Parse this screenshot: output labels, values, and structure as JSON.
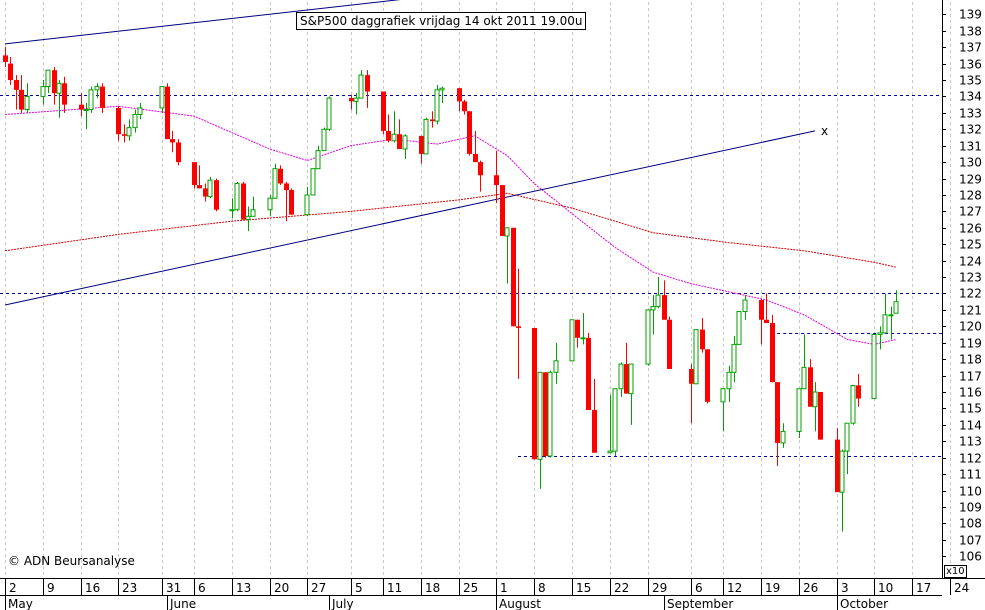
{
  "chart_data": {
    "type": "candlestick",
    "title": "S&P500 daggrafiek vrijdag 14 okt 2011 19.00u",
    "copyright": "© ADN Beursanalyse",
    "y_scale_note": "x10",
    "ylim": [
      105.5,
      139.5
    ],
    "y_ticks": [
      106,
      107,
      108,
      109,
      110,
      111,
      112,
      113,
      114,
      115,
      116,
      117,
      118,
      119,
      120,
      121,
      122,
      123,
      124,
      125,
      126,
      127,
      128,
      129,
      130,
      131,
      132,
      133,
      134,
      135,
      136,
      137,
      138,
      139
    ],
    "x_day_labels": [
      "2",
      "9",
      "16",
      "23",
      "31",
      "6",
      "13",
      "20",
      "27",
      "5",
      "11",
      "18",
      "25",
      "1",
      "8",
      "15",
      "22",
      "29",
      "6",
      "12",
      "19",
      "26",
      "3",
      "10",
      "17",
      "24"
    ],
    "x_month_labels": [
      "May",
      "June",
      "July",
      "August",
      "September",
      "October"
    ],
    "horizontal_levels": [
      134.1,
      122.0,
      119.6,
      112.1
    ],
    "trendline_markers": [
      "x"
    ],
    "candles": [
      {
        "date": "2011-05-02",
        "o": 136.5,
        "h": 137.0,
        "l": 135.8,
        "c": 136.1
      },
      {
        "date": "2011-05-03",
        "o": 136.0,
        "h": 136.4,
        "l": 134.7,
        "c": 135.0
      },
      {
        "date": "2011-05-04",
        "o": 135.0,
        "h": 135.3,
        "l": 133.2,
        "c": 134.4
      },
      {
        "date": "2011-05-05",
        "o": 134.4,
        "h": 135.3,
        "l": 133.0,
        "c": 133.2
      },
      {
        "date": "2011-05-06",
        "o": 133.2,
        "h": 134.8,
        "l": 133.0,
        "c": 134.0
      },
      {
        "date": "2011-05-09",
        "o": 134.0,
        "h": 135.0,
        "l": 133.5,
        "c": 134.6
      },
      {
        "date": "2011-05-10",
        "o": 134.6,
        "h": 135.6,
        "l": 134.2,
        "c": 135.6
      },
      {
        "date": "2011-05-11",
        "o": 135.6,
        "h": 135.8,
        "l": 133.5,
        "c": 134.2
      },
      {
        "date": "2011-05-12",
        "o": 134.2,
        "h": 135.0,
        "l": 132.7,
        "c": 134.8
      },
      {
        "date": "2011-05-13",
        "o": 134.8,
        "h": 135.2,
        "l": 133.0,
        "c": 133.5
      },
      {
        "date": "2011-05-16",
        "o": 133.5,
        "h": 134.2,
        "l": 132.8,
        "c": 133.2
      },
      {
        "date": "2011-05-17",
        "o": 133.2,
        "h": 133.6,
        "l": 132.0,
        "c": 133.2
      },
      {
        "date": "2011-05-18",
        "o": 133.2,
        "h": 134.6,
        "l": 133.0,
        "c": 134.4
      },
      {
        "date": "2011-05-19",
        "o": 134.4,
        "h": 134.8,
        "l": 133.9,
        "c": 134.6
      },
      {
        "date": "2011-05-20",
        "o": 134.6,
        "h": 134.8,
        "l": 133.0,
        "c": 133.3
      },
      {
        "date": "2011-05-23",
        "o": 133.3,
        "h": 133.4,
        "l": 131.3,
        "c": 131.7
      },
      {
        "date": "2011-05-24",
        "o": 131.7,
        "h": 132.3,
        "l": 131.2,
        "c": 131.6
      },
      {
        "date": "2011-05-25",
        "o": 131.6,
        "h": 132.6,
        "l": 131.3,
        "c": 132.1
      },
      {
        "date": "2011-05-26",
        "o": 132.1,
        "h": 133.2,
        "l": 131.8,
        "c": 132.9
      },
      {
        "date": "2011-05-27",
        "o": 132.9,
        "h": 133.6,
        "l": 132.6,
        "c": 133.3
      },
      {
        "date": "2011-05-31",
        "o": 133.3,
        "h": 134.6,
        "l": 133.0,
        "c": 134.6
      },
      {
        "date": "2011-06-01",
        "o": 134.6,
        "h": 134.8,
        "l": 131.4,
        "c": 131.4
      },
      {
        "date": "2011-06-02",
        "o": 131.4,
        "h": 131.9,
        "l": 130.6,
        "c": 131.2
      },
      {
        "date": "2011-06-03",
        "o": 131.2,
        "h": 131.4,
        "l": 129.8,
        "c": 130.0
      },
      {
        "date": "2011-06-06",
        "o": 130.0,
        "h": 130.0,
        "l": 128.4,
        "c": 128.6
      },
      {
        "date": "2011-06-07",
        "o": 128.6,
        "h": 129.8,
        "l": 128.4,
        "c": 128.4
      },
      {
        "date": "2011-06-08",
        "o": 128.4,
        "h": 128.7,
        "l": 127.6,
        "c": 127.9
      },
      {
        "date": "2011-06-09",
        "o": 127.9,
        "h": 129.1,
        "l": 127.8,
        "c": 128.9
      },
      {
        "date": "2011-06-10",
        "o": 128.9,
        "h": 129.0,
        "l": 127.0,
        "c": 127.1
      },
      {
        "date": "2011-06-13",
        "o": 127.1,
        "h": 127.8,
        "l": 126.6,
        "c": 127.1
      },
      {
        "date": "2011-06-14",
        "o": 127.1,
        "h": 128.8,
        "l": 127.0,
        "c": 128.7
      },
      {
        "date": "2011-06-15",
        "o": 128.7,
        "h": 128.8,
        "l": 126.5,
        "c": 126.5
      },
      {
        "date": "2011-06-16",
        "o": 126.5,
        "h": 127.3,
        "l": 125.8,
        "c": 126.7
      },
      {
        "date": "2011-06-17",
        "o": 126.7,
        "h": 127.9,
        "l": 126.7,
        "c": 127.1
      },
      {
        "date": "2011-06-20",
        "o": 127.1,
        "h": 128.0,
        "l": 126.7,
        "c": 127.8
      },
      {
        "date": "2011-06-21",
        "o": 127.8,
        "h": 129.9,
        "l": 127.8,
        "c": 129.6
      },
      {
        "date": "2011-06-22",
        "o": 129.6,
        "h": 129.8,
        "l": 128.6,
        "c": 128.7
      },
      {
        "date": "2011-06-23",
        "o": 128.7,
        "h": 128.8,
        "l": 126.4,
        "c": 128.3
      },
      {
        "date": "2011-06-24",
        "o": 128.3,
        "h": 128.4,
        "l": 126.8,
        "c": 126.8
      },
      {
        "date": "2011-06-27",
        "o": 126.8,
        "h": 128.5,
        "l": 126.7,
        "c": 128.0
      },
      {
        "date": "2011-06-28",
        "o": 128.0,
        "h": 129.6,
        "l": 128.0,
        "c": 129.6
      },
      {
        "date": "2011-06-29",
        "o": 129.6,
        "h": 131.0,
        "l": 129.6,
        "c": 130.7
      },
      {
        "date": "2011-06-30",
        "o": 130.7,
        "h": 132.1,
        "l": 130.7,
        "c": 132.0
      },
      {
        "date": "2011-07-01",
        "o": 132.0,
        "h": 134.0,
        "l": 131.9,
        "c": 133.9
      },
      {
        "date": "2011-07-05",
        "o": 133.9,
        "h": 134.1,
        "l": 133.2,
        "c": 133.7
      },
      {
        "date": "2011-07-06",
        "o": 133.7,
        "h": 134.2,
        "l": 132.9,
        "c": 133.9
      },
      {
        "date": "2011-07-07",
        "o": 133.9,
        "h": 135.6,
        "l": 133.9,
        "c": 135.3
      },
      {
        "date": "2011-07-08",
        "o": 135.3,
        "h": 135.6,
        "l": 133.3,
        "c": 134.3
      },
      {
        "date": "2011-07-11",
        "o": 134.3,
        "h": 134.3,
        "l": 131.7,
        "c": 131.9
      },
      {
        "date": "2011-07-12",
        "o": 131.9,
        "h": 132.9,
        "l": 131.2,
        "c": 131.3
      },
      {
        "date": "2011-07-13",
        "o": 131.3,
        "h": 133.1,
        "l": 131.2,
        "c": 131.7
      },
      {
        "date": "2011-07-14",
        "o": 131.7,
        "h": 132.6,
        "l": 130.8,
        "c": 130.8
      },
      {
        "date": "2011-07-15",
        "o": 130.8,
        "h": 131.7,
        "l": 130.2,
        "c": 131.6
      },
      {
        "date": "2011-07-18",
        "o": 131.6,
        "h": 131.6,
        "l": 129.9,
        "c": 130.5
      },
      {
        "date": "2011-07-19",
        "o": 130.5,
        "h": 132.7,
        "l": 130.5,
        "c": 132.6
      },
      {
        "date": "2011-07-20",
        "o": 132.6,
        "h": 133.1,
        "l": 132.1,
        "c": 132.5
      },
      {
        "date": "2011-07-21",
        "o": 132.5,
        "h": 134.7,
        "l": 132.3,
        "c": 134.4
      },
      {
        "date": "2011-07-22",
        "o": 134.4,
        "h": 134.6,
        "l": 133.6,
        "c": 134.5
      },
      {
        "date": "2011-07-25",
        "o": 134.5,
        "h": 134.5,
        "l": 133.1,
        "c": 133.7
      },
      {
        "date": "2011-07-26",
        "o": 133.7,
        "h": 133.8,
        "l": 132.9,
        "c": 133.1
      },
      {
        "date": "2011-07-27",
        "o": 133.1,
        "h": 133.1,
        "l": 130.4,
        "c": 130.5
      },
      {
        "date": "2011-07-28",
        "o": 130.5,
        "h": 131.9,
        "l": 130.0,
        "c": 130.0
      },
      {
        "date": "2011-07-29",
        "o": 130.0,
        "h": 130.1,
        "l": 128.2,
        "c": 129.2
      },
      {
        "date": "2011-08-01",
        "o": 129.2,
        "h": 130.7,
        "l": 127.5,
        "c": 128.6
      },
      {
        "date": "2011-08-02",
        "o": 128.6,
        "h": 128.6,
        "l": 125.5,
        "c": 125.5
      },
      {
        "date": "2011-08-03",
        "o": 125.5,
        "h": 126.0,
        "l": 122.6,
        "c": 126.0
      },
      {
        "date": "2011-08-04",
        "o": 126.0,
        "h": 126.0,
        "l": 120.0,
        "c": 120.0
      },
      {
        "date": "2011-08-05",
        "o": 120.0,
        "h": 123.5,
        "l": 116.8,
        "c": 119.9
      },
      {
        "date": "2011-08-08",
        "o": 119.9,
        "h": 119.9,
        "l": 111.9,
        "c": 111.9
      },
      {
        "date": "2011-08-09",
        "o": 111.9,
        "h": 117.2,
        "l": 110.1,
        "c": 117.2
      },
      {
        "date": "2011-08-10",
        "o": 117.2,
        "h": 117.2,
        "l": 112.0,
        "c": 112.1
      },
      {
        "date": "2011-08-11",
        "o": 112.1,
        "h": 117.3,
        "l": 112.0,
        "c": 117.2
      },
      {
        "date": "2011-08-12",
        "o": 117.2,
        "h": 119.0,
        "l": 116.5,
        "c": 117.9
      },
      {
        "date": "2011-08-15",
        "o": 117.9,
        "h": 120.4,
        "l": 117.9,
        "c": 120.4
      },
      {
        "date": "2011-08-16",
        "o": 120.4,
        "h": 120.4,
        "l": 118.7,
        "c": 119.3
      },
      {
        "date": "2011-08-17",
        "o": 119.3,
        "h": 120.8,
        "l": 118.9,
        "c": 119.3
      },
      {
        "date": "2011-08-18",
        "o": 119.3,
        "h": 119.6,
        "l": 114.9,
        "c": 114.9
      },
      {
        "date": "2011-08-19",
        "o": 114.9,
        "h": 116.8,
        "l": 112.3,
        "c": 112.3
      },
      {
        "date": "2011-08-22",
        "o": 112.3,
        "h": 115.8,
        "l": 112.3,
        "c": 112.4
      },
      {
        "date": "2011-08-23",
        "o": 112.4,
        "h": 116.2,
        "l": 112.1,
        "c": 116.2
      },
      {
        "date": "2011-08-24",
        "o": 116.2,
        "h": 117.8,
        "l": 115.7,
        "c": 117.7
      },
      {
        "date": "2011-08-25",
        "o": 117.7,
        "h": 119.0,
        "l": 115.9,
        "c": 115.9
      },
      {
        "date": "2011-08-26",
        "o": 115.9,
        "h": 117.7,
        "l": 114.0,
        "c": 117.7
      },
      {
        "date": "2011-08-29",
        "o": 117.7,
        "h": 121.0,
        "l": 117.6,
        "c": 121.0
      },
      {
        "date": "2011-08-30",
        "o": 121.0,
        "h": 121.9,
        "l": 119.5,
        "c": 121.2
      },
      {
        "date": "2011-08-31",
        "o": 121.2,
        "h": 123.0,
        "l": 121.1,
        "c": 121.9
      },
      {
        "date": "2011-09-01",
        "o": 121.9,
        "h": 122.8,
        "l": 120.4,
        "c": 120.4
      },
      {
        "date": "2011-09-02",
        "o": 120.4,
        "h": 120.6,
        "l": 117.5,
        "c": 117.4
      },
      {
        "date": "2011-09-06",
        "o": 117.4,
        "h": 117.7,
        "l": 114.1,
        "c": 116.5
      },
      {
        "date": "2011-09-07",
        "o": 116.5,
        "h": 119.8,
        "l": 116.5,
        "c": 119.8
      },
      {
        "date": "2011-09-08",
        "o": 119.8,
        "h": 120.5,
        "l": 118.4,
        "c": 118.6
      },
      {
        "date": "2011-09-09",
        "o": 118.6,
        "h": 118.6,
        "l": 115.3,
        "c": 115.4
      },
      {
        "date": "2011-09-12",
        "o": 115.4,
        "h": 116.2,
        "l": 113.6,
        "c": 116.2
      },
      {
        "date": "2011-09-13",
        "o": 116.2,
        "h": 117.6,
        "l": 115.4,
        "c": 117.2
      },
      {
        "date": "2011-09-14",
        "o": 117.2,
        "h": 119.4,
        "l": 116.6,
        "c": 118.9
      },
      {
        "date": "2011-09-15",
        "o": 118.9,
        "h": 120.9,
        "l": 118.9,
        "c": 120.9
      },
      {
        "date": "2011-09-16",
        "o": 120.9,
        "h": 121.9,
        "l": 120.4,
        "c": 121.6
      },
      {
        "date": "2011-09-19",
        "o": 121.6,
        "h": 121.7,
        "l": 118.9,
        "c": 120.4
      },
      {
        "date": "2011-09-20",
        "o": 120.4,
        "h": 122.0,
        "l": 120.2,
        "c": 120.2
      },
      {
        "date": "2011-09-21",
        "o": 120.2,
        "h": 120.7,
        "l": 116.6,
        "c": 116.6
      },
      {
        "date": "2011-09-22",
        "o": 116.6,
        "h": 116.6,
        "l": 111.5,
        "c": 112.9
      },
      {
        "date": "2011-09-23",
        "o": 112.9,
        "h": 114.1,
        "l": 112.6,
        "c": 113.6
      },
      {
        "date": "2011-09-26",
        "o": 113.6,
        "h": 116.2,
        "l": 113.2,
        "c": 116.2
      },
      {
        "date": "2011-09-27",
        "o": 116.2,
        "h": 119.5,
        "l": 116.2,
        "c": 117.5
      },
      {
        "date": "2011-09-28",
        "o": 117.5,
        "h": 118.0,
        "l": 115.1,
        "c": 115.1
      },
      {
        "date": "2011-09-29",
        "o": 115.1,
        "h": 116.6,
        "l": 113.6,
        "c": 116.0
      },
      {
        "date": "2011-09-30",
        "o": 116.0,
        "h": 116.0,
        "l": 113.1,
        "c": 113.1
      },
      {
        "date": "2011-10-03",
        "o": 113.1,
        "h": 113.8,
        "l": 109.9,
        "c": 109.9
      },
      {
        "date": "2011-10-04",
        "o": 109.9,
        "h": 112.5,
        "l": 107.5,
        "c": 112.4
      },
      {
        "date": "2011-10-05",
        "o": 112.4,
        "h": 114.1,
        "l": 111.0,
        "c": 114.1
      },
      {
        "date": "2011-10-06",
        "o": 114.1,
        "h": 116.4,
        "l": 114.0,
        "c": 116.4
      },
      {
        "date": "2011-10-07",
        "o": 116.4,
        "h": 117.1,
        "l": 115.1,
        "c": 115.6
      },
      {
        "date": "2011-10-10",
        "o": 115.6,
        "h": 119.5,
        "l": 115.6,
        "c": 119.5
      },
      {
        "date": "2011-10-11",
        "o": 119.5,
        "h": 120.0,
        "l": 118.6,
        "c": 119.6
      },
      {
        "date": "2011-10-12",
        "o": 119.6,
        "h": 122.0,
        "l": 119.6,
        "c": 120.7
      },
      {
        "date": "2011-10-13",
        "o": 120.7,
        "h": 121.2,
        "l": 119.2,
        "c": 120.7
      },
      {
        "date": "2011-10-14",
        "o": 120.8,
        "h": 122.2,
        "l": 120.8,
        "c": 121.5
      }
    ],
    "ma_magenta": [
      {
        "date": "2011-05-02",
        "v": 132.9
      },
      {
        "date": "2011-05-23",
        "v": 133.4
      },
      {
        "date": "2011-06-06",
        "v": 132.8
      },
      {
        "date": "2011-06-20",
        "v": 130.8
      },
      {
        "date": "2011-06-27",
        "v": 130.1
      },
      {
        "date": "2011-07-05",
        "v": 131.0
      },
      {
        "date": "2011-07-13",
        "v": 131.4
      },
      {
        "date": "2011-07-21",
        "v": 131.1
      },
      {
        "date": "2011-07-28",
        "v": 131.6
      },
      {
        "date": "2011-08-03",
        "v": 130.4
      },
      {
        "date": "2011-08-08",
        "v": 128.7
      },
      {
        "date": "2011-08-16",
        "v": 126.6
      },
      {
        "date": "2011-08-23",
        "v": 124.8
      },
      {
        "date": "2011-08-30",
        "v": 123.3
      },
      {
        "date": "2011-09-06",
        "v": 122.6
      },
      {
        "date": "2011-09-13",
        "v": 122.1
      },
      {
        "date": "2011-09-20",
        "v": 121.6
      },
      {
        "date": "2011-09-27",
        "v": 120.7
      },
      {
        "date": "2011-10-05",
        "v": 119.2
      },
      {
        "date": "2011-10-10",
        "v": 118.9
      },
      {
        "date": "2011-10-14",
        "v": 119.2
      }
    ],
    "ma_red": [
      {
        "date": "2011-05-02",
        "v": 124.6
      },
      {
        "date": "2011-05-23",
        "v": 125.6
      },
      {
        "date": "2011-06-13",
        "v": 126.4
      },
      {
        "date": "2011-07-05",
        "v": 127.0
      },
      {
        "date": "2011-07-25",
        "v": 127.7
      },
      {
        "date": "2011-08-03",
        "v": 128.1
      },
      {
        "date": "2011-08-15",
        "v": 127.2
      },
      {
        "date": "2011-08-30",
        "v": 125.7
      },
      {
        "date": "2011-09-13",
        "v": 125.1
      },
      {
        "date": "2011-09-27",
        "v": 124.6
      },
      {
        "date": "2011-10-10",
        "v": 123.9
      },
      {
        "date": "2011-10-14",
        "v": 123.6
      }
    ],
    "trendlines": [
      {
        "from": {
          "date": "2011-05-02",
          "v": 137.2
        },
        "to": {
          "date": "2011-07-25",
          "v": 140.3
        }
      },
      {
        "from": {
          "date": "2011-05-02",
          "v": 121.3
        },
        "to": {
          "date": "2011-09-29",
          "v": 131.9
        }
      }
    ]
  },
  "colors": {
    "up": "#00a000",
    "down": "#ff0000",
    "level": "#0000a0",
    "trend": "#000080",
    "ma_short": "#e000e0",
    "ma_long": "#d00000",
    "grid": "#c8c8c8"
  }
}
